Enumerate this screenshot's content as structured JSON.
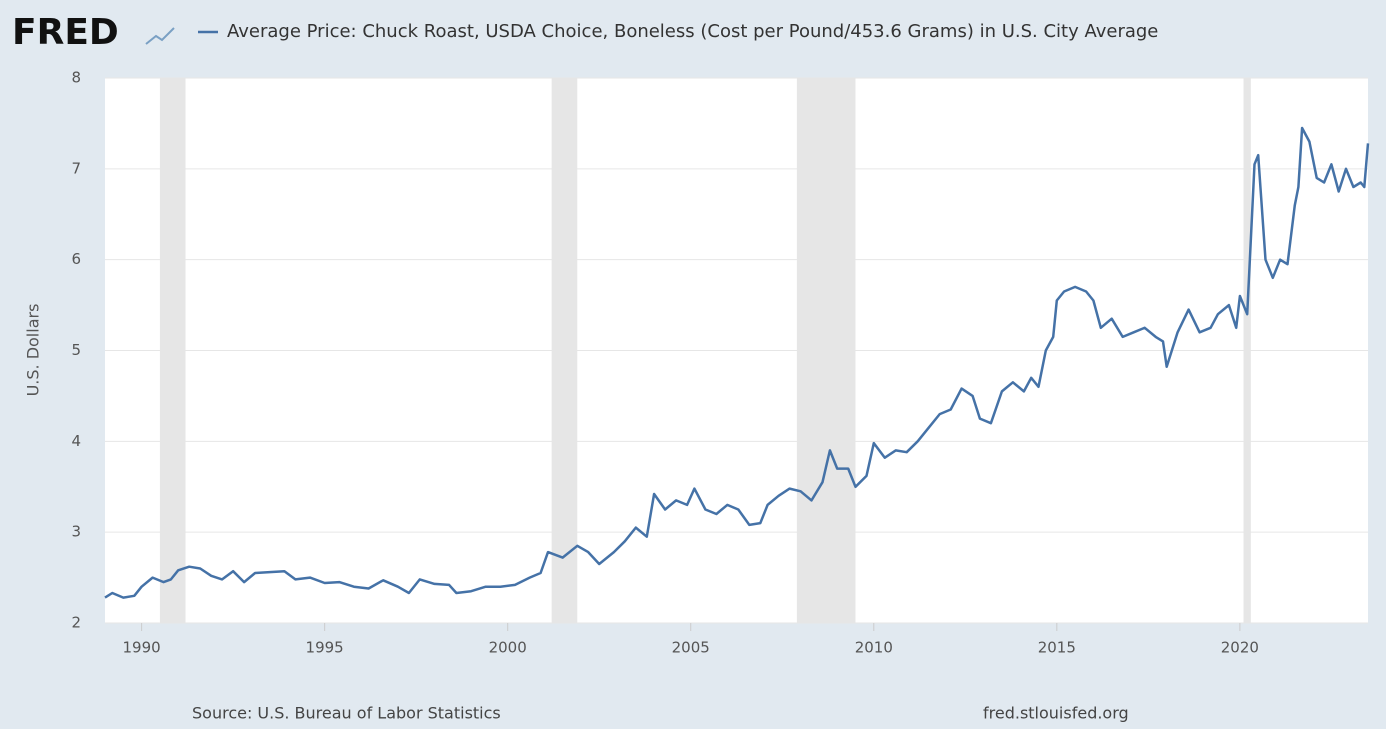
{
  "chart_data": {
    "type": "line",
    "logo": "FRED",
    "ylabel": "U.S. Dollars",
    "source": "Source: U.S. Bureau of Labor Statistics",
    "site": "fred.stlouisfed.org",
    "xlim": [
      1989,
      2023.5
    ],
    "xticks": [
      1990,
      1995,
      2000,
      2005,
      2010,
      2015,
      2020
    ],
    "ylim": [
      2,
      8
    ],
    "yticks": [
      2,
      3,
      4,
      5,
      6,
      7,
      8
    ],
    "grid": true,
    "recessions": [
      [
        1990.5,
        1991.2
      ],
      [
        2001.2,
        2001.9
      ],
      [
        2007.9,
        2009.5
      ],
      [
        2020.1,
        2020.3
      ]
    ],
    "x": [
      1989.0,
      1989.2,
      1989.5,
      1989.8,
      1990.0,
      1990.3,
      1990.6,
      1990.8,
      1991.0,
      1991.3,
      1991.6,
      1991.9,
      1992.2,
      1992.5,
      1992.8,
      1993.1,
      1993.5,
      1993.9,
      1994.2,
      1994.6,
      1995.0,
      1995.4,
      1995.8,
      1996.2,
      1996.6,
      1997.0,
      1997.3,
      1997.6,
      1998.0,
      1998.4,
      1998.6,
      1999.0,
      1999.4,
      1999.8,
      2000.2,
      2000.6,
      2000.9,
      2001.1,
      2001.5,
      2001.9,
      2002.2,
      2002.5,
      2002.9,
      2003.2,
      2003.5,
      2003.8,
      2004.0,
      2004.3,
      2004.6,
      2004.9,
      2005.1,
      2005.4,
      2005.7,
      2006.0,
      2006.3,
      2006.6,
      2006.9,
      2007.1,
      2007.4,
      2007.7,
      2008.0,
      2008.3,
      2008.6,
      2008.8,
      2009.0,
      2009.3,
      2009.5,
      2009.8,
      2010.0,
      2010.3,
      2010.6,
      2010.9,
      2011.2,
      2011.5,
      2011.8,
      2012.1,
      2012.4,
      2012.7,
      2012.9,
      2013.2,
      2013.5,
      2013.8,
      2014.1,
      2014.3,
      2014.5,
      2014.7,
      2014.9,
      2015.0,
      2015.2,
      2015.5,
      2015.8,
      2016.0,
      2016.2,
      2016.5,
      2016.8,
      2017.1,
      2017.4,
      2017.7,
      2017.9,
      2018.0,
      2018.3,
      2018.6,
      2018.9,
      2019.2,
      2019.4,
      2019.7,
      2019.9,
      2020.0,
      2020.2,
      2020.4,
      2020.5,
      2020.7,
      2020.9,
      2021.1,
      2021.3,
      2021.5,
      2021.6,
      2021.7,
      2021.9,
      2022.1,
      2022.3,
      2022.5,
      2022.7,
      2022.9,
      2023.1,
      2023.3,
      2023.4,
      2023.45,
      2023.5
    ],
    "series": [
      {
        "name": "Average Price: Chuck Roast, USDA Choice, Boneless (Cost per Pound/453.6 Grams) in U.S. City Average",
        "color": "#4572a7",
        "values": [
          2.28,
          2.33,
          2.28,
          2.3,
          2.4,
          2.5,
          2.45,
          2.48,
          2.58,
          2.62,
          2.6,
          2.52,
          2.48,
          2.57,
          2.45,
          2.55,
          2.56,
          2.57,
          2.48,
          2.5,
          2.44,
          2.45,
          2.4,
          2.38,
          2.47,
          2.4,
          2.33,
          2.48,
          2.43,
          2.42,
          2.33,
          2.35,
          2.4,
          2.4,
          2.42,
          2.5,
          2.55,
          2.78,
          2.72,
          2.85,
          2.78,
          2.65,
          2.78,
          2.9,
          3.05,
          2.95,
          3.42,
          3.25,
          3.35,
          3.3,
          3.48,
          3.25,
          3.2,
          3.3,
          3.25,
          3.08,
          3.1,
          3.3,
          3.4,
          3.48,
          3.45,
          3.35,
          3.55,
          3.9,
          3.7,
          3.7,
          3.5,
          3.62,
          3.98,
          3.82,
          3.9,
          3.88,
          4.0,
          4.15,
          4.3,
          4.35,
          4.58,
          4.5,
          4.25,
          4.2,
          4.55,
          4.65,
          4.55,
          4.7,
          4.6,
          5.0,
          5.15,
          5.55,
          5.65,
          5.7,
          5.65,
          5.55,
          5.25,
          5.35,
          5.15,
          5.2,
          5.25,
          5.15,
          5.1,
          4.82,
          5.2,
          5.45,
          5.2,
          5.25,
          5.4,
          5.5,
          5.25,
          5.6,
          5.4,
          7.05,
          7.15,
          6.0,
          5.8,
          6.0,
          5.95,
          6.6,
          6.8,
          7.45,
          7.3,
          6.9,
          6.85,
          7.05,
          6.75,
          7.0,
          6.8,
          6.85,
          6.8,
          7.05,
          7.28
        ]
      }
    ]
  }
}
